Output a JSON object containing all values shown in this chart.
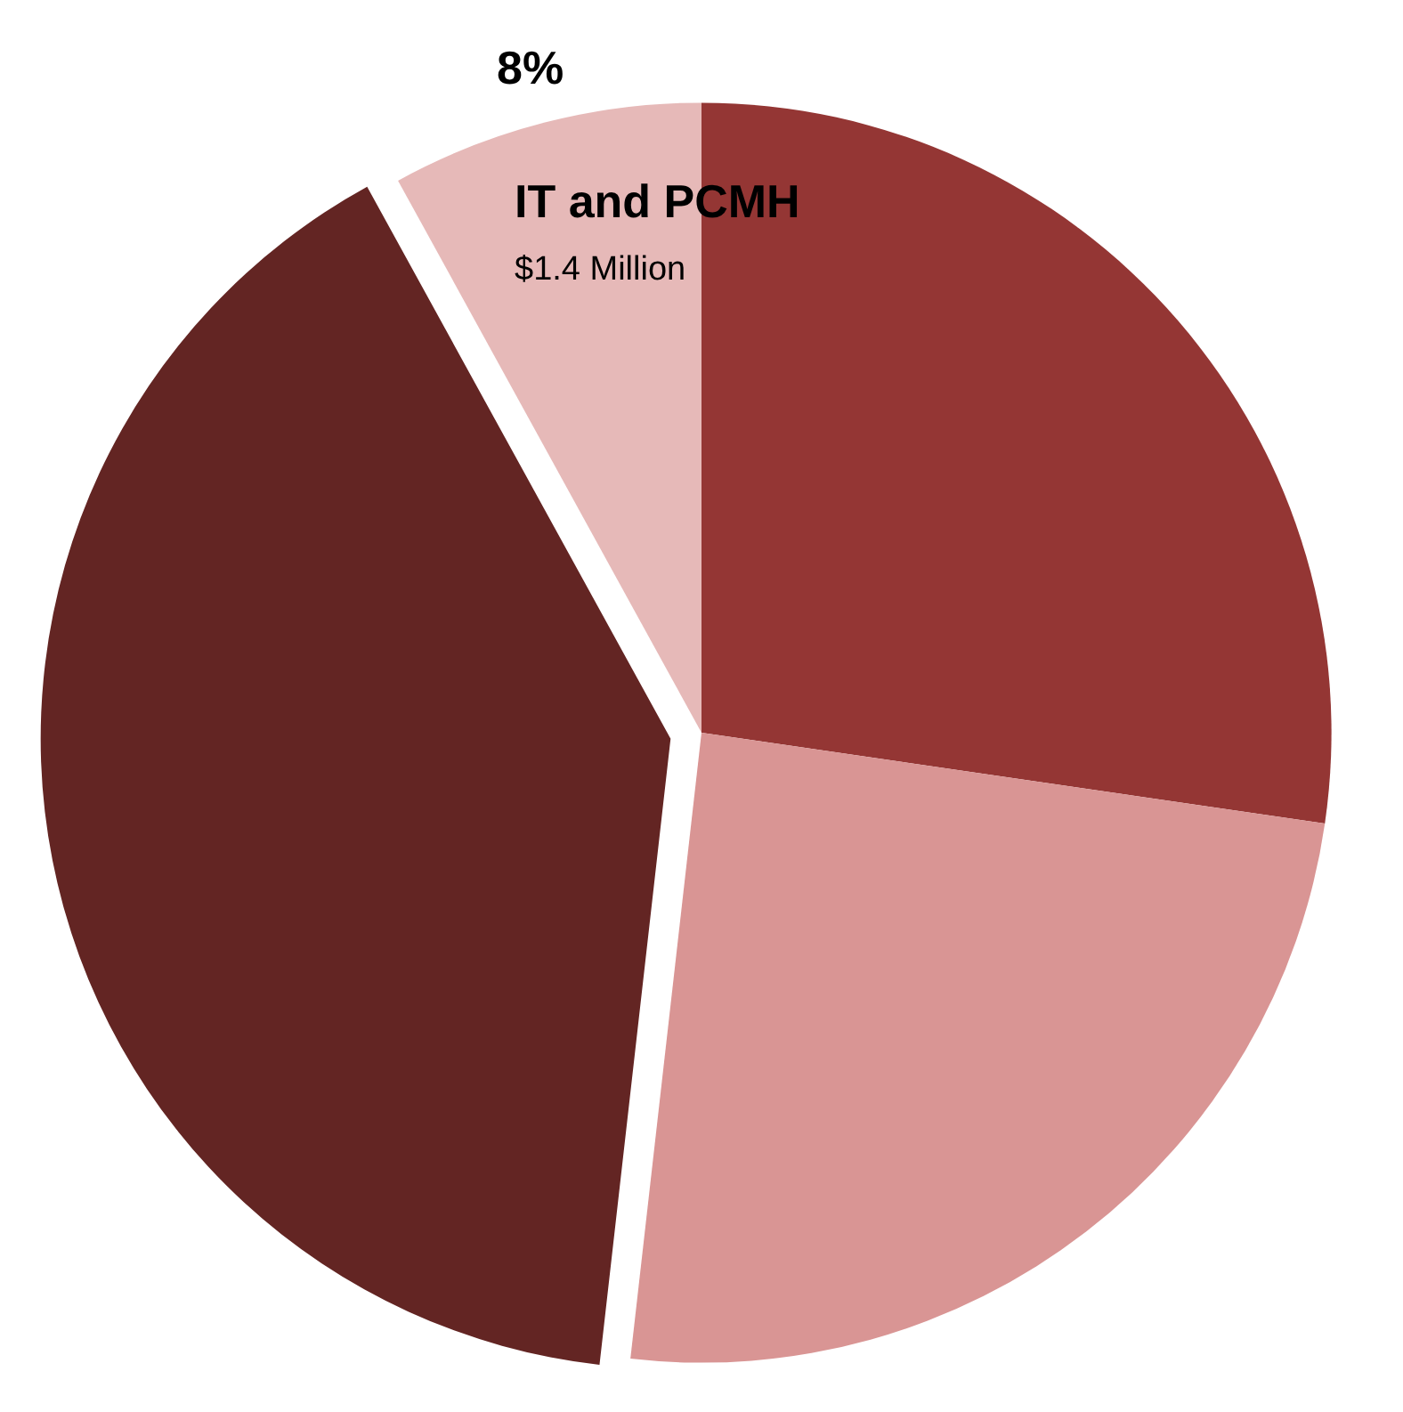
{
  "chart_data": {
    "type": "pie",
    "categories": [
      null,
      null,
      null,
      "IT and PCMH"
    ],
    "values": [
      27.3,
      24.5,
      40.2,
      8
    ],
    "colors": [
      "#943634",
      "#d99594",
      "#632523",
      "#e6b9b8"
    ],
    "value_labels": [
      null,
      null,
      null,
      "8%"
    ],
    "annotations": [
      "$1.4 Million"
    ],
    "legend": false
  }
}
